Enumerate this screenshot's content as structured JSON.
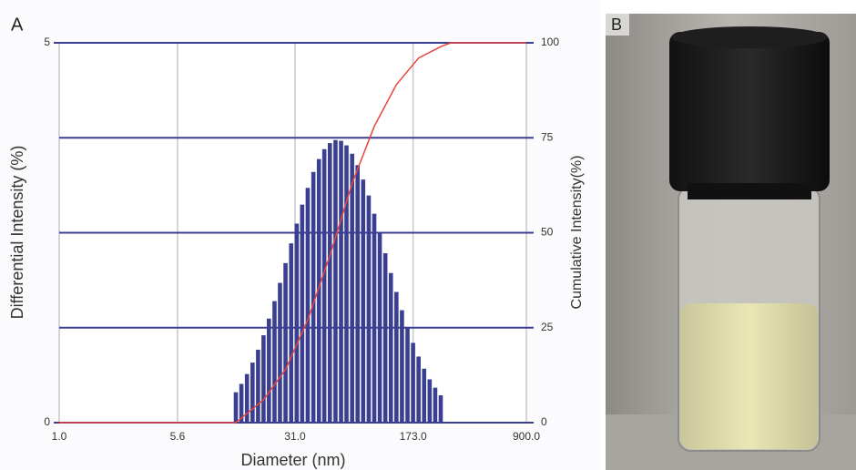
{
  "chart_data": {
    "type": "bar",
    "panel_label": "A",
    "ylabel": "Differential Intensity (%)",
    "y2label": "Cumulative Intensity(%)",
    "xlabel": "Diameter (nm)",
    "xscale": "log",
    "grid": true,
    "xlim": [
      1.0,
      900.0
    ],
    "xticks": [
      {
        "value": 1.0,
        "label": "1.0"
      },
      {
        "value": 5.6,
        "label": "5.6"
      },
      {
        "value": 31.0,
        "label": "31.0"
      },
      {
        "value": 173.0,
        "label": "173.0"
      },
      {
        "value": 900.0,
        "label": "900.0"
      }
    ],
    "ylim": [
      0,
      5
    ],
    "yticks": [
      0,
      5
    ],
    "y2lim": [
      0,
      100
    ],
    "y2ticks": [
      0,
      25,
      50,
      75,
      100
    ],
    "series": [
      {
        "color": "#3b3f92",
        "x": [
          13.1,
          14.2,
          15.4,
          16.7,
          18.1,
          19.6,
          21.2,
          23.0,
          24.9,
          27.0,
          29.3,
          31.8,
          34.4,
          37.3,
          40.5,
          43.9,
          47.5,
          51.5,
          55.9,
          60.6,
          65.6,
          71.2,
          77.1,
          83.6,
          90.7,
          98.3,
          106.5,
          115.5,
          125.2,
          135.7,
          147.1,
          159.5,
          172.9,
          187.4,
          203.1,
          220.2,
          238.7,
          258.7
        ],
        "values": [
          0.4,
          0.51,
          0.64,
          0.79,
          0.96,
          1.15,
          1.37,
          1.6,
          1.84,
          2.1,
          2.36,
          2.62,
          2.87,
          3.09,
          3.3,
          3.47,
          3.6,
          3.68,
          3.72,
          3.71,
          3.65,
          3.54,
          3.39,
          3.2,
          2.99,
          2.75,
          2.49,
          2.23,
          1.97,
          1.72,
          1.48,
          1.26,
          1.05,
          0.87,
          0.71,
          0.57,
          0.46,
          0.36
        ]
      },
      {
        "color": "#e8453c",
        "axis": "y2",
        "line": true,
        "x": [
          1.0,
          13.1,
          19.6,
          27.0,
          37.3,
          51.5,
          71.2,
          98.3,
          135.7,
          187.4,
          258.7,
          300.0,
          900.0
        ],
        "values": [
          0,
          0,
          6,
          14,
          27,
          44,
          63,
          78,
          89,
          96,
          99,
          100,
          100
        ]
      }
    ]
  },
  "photo": {
    "label": "B"
  }
}
